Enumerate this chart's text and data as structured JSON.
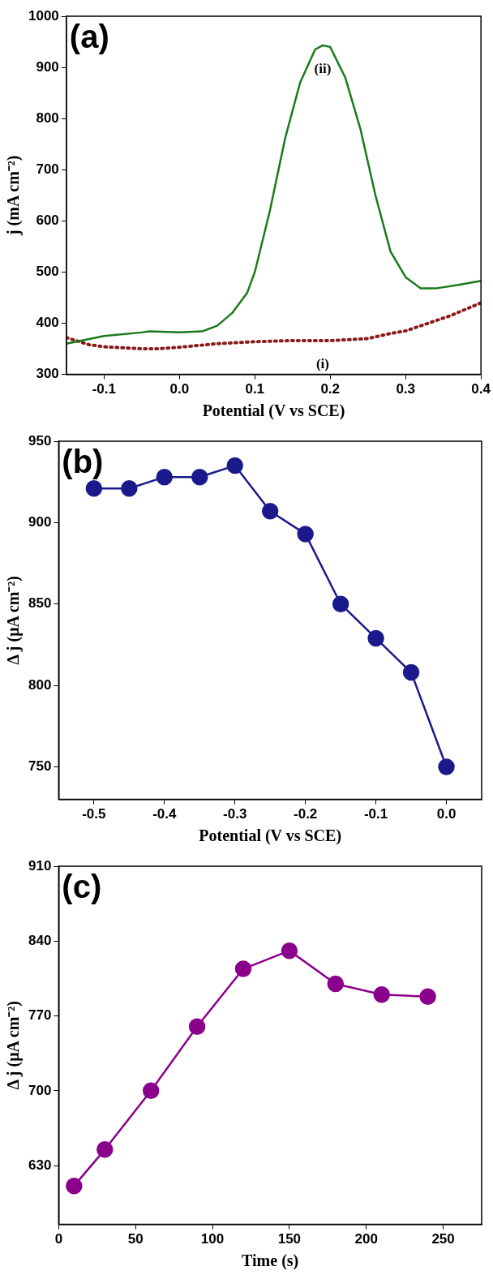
{
  "chart_data": [
    {
      "type": "line",
      "xlabel": "Potential (V vs SCE)",
      "ylabel": "j (mA cm⁻²)",
      "annotations": [
        "(a)",
        "(ii)",
        "(i)"
      ],
      "xlim": [
        -0.15,
        0.4
      ],
      "xticks": [
        -0.1,
        {
          "value": 0,
          "label": "0.0"
        },
        0.1,
        0.2,
        0.3,
        0.4
      ],
      "ylim": [
        300,
        1000
      ],
      "yticks": [
        300,
        400,
        500,
        600,
        700,
        800,
        900,
        1000
      ],
      "grid": false,
      "legend": false,
      "marker": "none",
      "series": [
        {
          "color": "#1a7a1a",
          "line_style": "solid",
          "x": [
            -0.15,
            -0.1,
            -0.05,
            -0.04,
            0,
            0.03,
            0.05,
            0.07,
            0.09,
            0.1,
            0.12,
            0.14,
            0.16,
            0.18,
            0.19,
            0.2,
            0.22,
            0.24,
            0.26,
            0.28,
            0.3,
            0.32,
            0.34,
            0.37,
            0.4
          ],
          "values": [
            360,
            375,
            382,
            384,
            382,
            384,
            395,
            420,
            460,
            500,
            620,
            760,
            870,
            935,
            943,
            940,
            880,
            780,
            650,
            540,
            490,
            468,
            468,
            475,
            483
          ]
        },
        {
          "color": "#8b1a1a",
          "line_style": "dotted",
          "x": [
            -0.15,
            -0.12,
            -0.1,
            -0.05,
            -0.03,
            0,
            0.05,
            0.1,
            0.15,
            0.2,
            0.25,
            0.28,
            0.3,
            0.33,
            0.36,
            0.4
          ],
          "values": [
            372,
            358,
            354,
            350,
            350,
            353,
            360,
            364,
            366,
            366,
            370,
            380,
            385,
            400,
            415,
            440
          ]
        }
      ]
    },
    {
      "type": "line",
      "xlabel": "Potential (V vs SCE)",
      "ylabel": "Δ j (μA cm⁻²)",
      "annotations": [
        "(b)"
      ],
      "xlim": [
        -0.55,
        0.05
      ],
      "xticks": [
        -0.5,
        -0.4,
        -0.3,
        -0.2,
        -0.1,
        {
          "value": 0,
          "label": "0.0"
        }
      ],
      "ylim": [
        730,
        950
      ],
      "yticks": [
        750,
        800,
        850,
        900,
        950
      ],
      "grid": false,
      "legend": false,
      "marker": "circle",
      "line_style": "solid",
      "x": [
        -0.5,
        -0.45,
        -0.4,
        -0.35,
        -0.3,
        -0.25,
        -0.2,
        -0.15,
        -0.1,
        -0.05,
        0
      ],
      "series": [
        {
          "color": "#1a1a8c",
          "values": [
            921,
            921,
            928,
            928,
            935,
            907,
            893,
            850,
            829,
            808,
            750
          ]
        }
      ]
    },
    {
      "type": "line",
      "xlabel": "Time (s)",
      "ylabel": "Δ j (μA cm⁻²)",
      "annotations": [
        "(c)"
      ],
      "xlim": [
        0,
        275
      ],
      "xticks": [
        0,
        50,
        100,
        150,
        200,
        250
      ],
      "ylim": [
        575,
        910
      ],
      "yticks": [
        630,
        700,
        770,
        840,
        910
      ],
      "grid": false,
      "legend": false,
      "marker": "circle",
      "line_style": "solid",
      "x": [
        10,
        30,
        60,
        90,
        120,
        150,
        180,
        210,
        240
      ],
      "series": [
        {
          "color": "#8b008b",
          "values": [
            611,
            645,
            700,
            760,
            814,
            831,
            800,
            790,
            788
          ]
        }
      ]
    }
  ]
}
